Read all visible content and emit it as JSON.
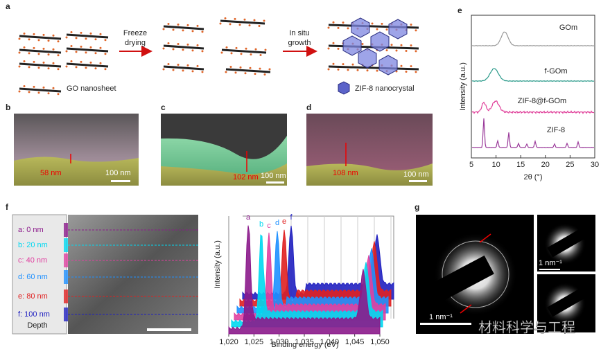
{
  "panel_a": {
    "label": "a",
    "step1": [
      "Freeze",
      "drying"
    ],
    "step2": [
      "In situ",
      "growth"
    ],
    "legend1": "GO nanosheet",
    "legend2": "ZIF-8 nanocrystal"
  },
  "panel_b": {
    "label": "b",
    "thickness": "58 nm",
    "scale": "100 nm"
  },
  "panel_c": {
    "label": "c",
    "thickness": "102 nm",
    "scale": "100 nm"
  },
  "panel_d": {
    "label": "d",
    "thickness": "108 nm",
    "scale": "100 nm"
  },
  "panel_e": {
    "label": "e",
    "ylabel": "Intensity (a.u.)",
    "xlabel": "2θ (°)",
    "xticks": [
      "5",
      "10",
      "15",
      "20",
      "25",
      "30"
    ],
    "curves": [
      "GOm",
      "f-GOm",
      "ZIF-8@f-GOm",
      "ZIF-8"
    ]
  },
  "panel_f": {
    "label": "f",
    "depths": [
      "a:  0 nm",
      "b:  20 nm",
      "c:  40 nm",
      "d:  60 nm",
      "e:  80 nm",
      "f:  100 nm"
    ],
    "depth_title": "Depth",
    "ylabel": "Intensity (a.u.)",
    "xlabel": "Binding energy (eV)",
    "xticks": [
      "1,020",
      "1,025",
      "1,030",
      "1,035",
      "1,040",
      "1,045",
      "1,050"
    ],
    "peaks": [
      "a",
      "b",
      "c",
      "d",
      "e",
      "f"
    ]
  },
  "panel_g": {
    "label": "g",
    "scales": [
      "1 nm⁻¹",
      "1 nm⁻¹"
    ]
  },
  "watermark": "材料科学与工程"
}
